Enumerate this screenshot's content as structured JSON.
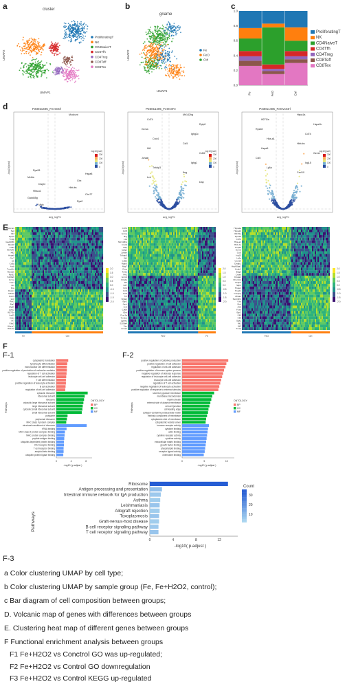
{
  "panels": {
    "a": {
      "label": "a",
      "title": "cluster",
      "xlabel": "UMAP1",
      "ylabel": "UMAP2"
    },
    "b": {
      "label": "b",
      "title": "gname",
      "xlabel": "UMAP1",
      "ylabel": "UMAP2"
    },
    "c": {
      "label": "c"
    },
    "d": {
      "label": "d"
    },
    "e": {
      "label": "E"
    },
    "f": {
      "label": "F",
      "f1": "F-1",
      "f2": "F-2",
      "f3": "F-3"
    }
  },
  "colors": {
    "ProliferatingT": "#1f77b4",
    "NK": "#ff7f0e",
    "CD4NaiveT": "#2ca02c",
    "CD4Tfh": "#d62728",
    "CD4Treg": "#9467bd",
    "CD8Teff": "#8c564b",
    "CD8Tex": "#e377c2",
    "Fe": "#1f77b4",
    "FeO": "#ff7f0e",
    "Ctrl": "#2ca02c",
    "ontBP": "#f8766d",
    "ontCC": "#00ba38",
    "ontMF": "#619cff"
  },
  "legend_a": [
    "ProliferatingT",
    "NK",
    "CD4NaiveT",
    "CD4Tfh",
    "CD4Treg",
    "CD8Teff",
    "CD8Tex"
  ],
  "legend_b": [
    "Fe",
    "FeO",
    "Ctrl"
  ],
  "chart_data": [
    {
      "type": "bar",
      "id": "c",
      "categories": [
        "Fe",
        "FeO",
        "Ctrl"
      ],
      "series": [
        {
          "name": "CD8Tex",
          "values": [
            0.26,
            0.15,
            0.3
          ]
        },
        {
          "name": "CD8Teff",
          "values": [
            0.07,
            0.04,
            0.05
          ]
        },
        {
          "name": "CD4Treg",
          "values": [
            0.06,
            0.03,
            0.04
          ]
        },
        {
          "name": "CD4Tfh",
          "values": [
            0.07,
            0.06,
            0.07
          ]
        },
        {
          "name": "CD4NaiveT",
          "values": [
            0.17,
            0.5,
            0.14
          ]
        },
        {
          "name": "NK",
          "values": [
            0.14,
            0.05,
            0.18
          ]
        },
        {
          "name": "ProliferatingT",
          "values": [
            0.23,
            0.17,
            0.22
          ]
        }
      ],
      "ylim": [
        0,
        1.0
      ],
      "yticks": [
        "0.0",
        "0.2",
        "0.4",
        "0.6",
        "0.8",
        "1.0"
      ],
      "legend": [
        "ProliferatingT",
        "NK",
        "CD4NaiveT",
        "CD4Tfh",
        "CD4Treg",
        "CD8Teff",
        "CD8Tex"
      ]
    },
    {
      "type": "bar",
      "id": "f3",
      "categories": [
        "Ribosome",
        "Antigen processing and presentation",
        "Intestinal immune network for IgA production",
        "Asthma",
        "Leishmaniasis",
        "Allograft rejection",
        "Toxoplasmosis",
        "Graft-versus-host disease",
        "B cell receptor signaling pathway",
        "T cell receptor signaling pathway"
      ],
      "values": [
        13.5,
        2.1,
        1.9,
        1.8,
        1.7,
        1.7,
        1.6,
        1.6,
        1.5,
        1.5
      ],
      "counts": [
        38,
        12,
        9,
        8,
        10,
        8,
        10,
        8,
        9,
        10
      ],
      "xlabel": "-log10( p.adjust )",
      "ylabel": "Pathways",
      "xticks": [
        "0",
        "4",
        "8",
        "12"
      ],
      "colorbar_title": "Count",
      "colorbar_ticks": [
        "30",
        "20",
        "10"
      ]
    },
    {
      "type": "bar",
      "id": "f1",
      "ylabel": "Pathways",
      "xlabel": "-log10 (p.adjust )",
      "legend_title": "ONTOLOGY",
      "legend": [
        "BP",
        "CC",
        "MF"
      ],
      "categories": [
        "cytoplasmic translation",
        "lymphocyte differentiation",
        "mononuclear cell differentiation",
        "positive regulation of production of molecular mediator",
        "regulation of T cell activation",
        "leukocyte cell-cell adhesion",
        "T cell differentiation",
        "positive regulation of leukocyte activation",
        "B cell activation",
        "regulation of cell-cell adhesion",
        "cytosolic ribosome",
        "ribosomal subunit",
        "ribosome",
        "cytosolic large ribosomal subunit",
        "large ribosomal subunit",
        "cytosolic small ribosomal subunit",
        "small ribosomal subunit",
        "polysome",
        "polysomal ribosome",
        "MHC class II protein complex",
        "structural constituent of ribosome",
        "rRNA binding",
        "MHC class II protein complex binding",
        "MHC protein complex binding",
        "peptide antigen binding",
        "ubiquitin-dependent protein binding",
        "CD4 receptor binding",
        "T cell receptor binding",
        "amyloid-beta binding",
        "ubiquitin protein ligase binding"
      ],
      "values": [
        3.6,
        3.3,
        3.2,
        3.2,
        3.1,
        3.0,
        2.9,
        2.9,
        2.8,
        2.7,
        9.5,
        8.6,
        8.4,
        8.2,
        8.0,
        7.9,
        7.7,
        3.4,
        3.2,
        3.0,
        9.2,
        3.1,
        2.6,
        2.5,
        2.4,
        2.3,
        2.3,
        2.2,
        2.2,
        2.1
      ],
      "ontology": [
        "BP",
        "BP",
        "BP",
        "BP",
        "BP",
        "BP",
        "BP",
        "BP",
        "BP",
        "BP",
        "CC",
        "CC",
        "CC",
        "CC",
        "CC",
        "CC",
        "CC",
        "CC",
        "CC",
        "CC",
        "MF",
        "MF",
        "MF",
        "MF",
        "MF",
        "MF",
        "MF",
        "MF",
        "MF",
        "MF"
      ],
      "xticks": [
        "0",
        "4",
        "8"
      ]
    },
    {
      "type": "bar",
      "id": "f2",
      "ylabel": "Pathways",
      "xlabel": "-log10 (p.adjust )",
      "legend_title": "ONTOLOGY",
      "legend": [
        "BP",
        "CC",
        "MF"
      ],
      "categories": [
        "positive regulation of cytokine production",
        "positive regulation of cell adhesion",
        "regulation of cell-cell adhesion",
        "positive regulation of immune system process",
        "negative regulation of defense response",
        "regulation of leukocyte cell-cell adhesion",
        "leukocyte cell-cell adhesion",
        "regulation of T cell activation",
        "negative regulation of leukocyte activation",
        "positive regulation of response to external stimulus",
        "secretory granule membrane",
        "membrane microdomain",
        "myelin sheath",
        "external side of plasma membrane",
        "cell-cell junction",
        "cell leading edge",
        "collagen-containing extracellular matrix",
        "extrinsic component of membrane",
        "cytoplasmic side of membrane",
        "cytoplasmic vesicle lumen",
        "immune receptor activity",
        "cytokine binding",
        "actin binding",
        "cytokine receptor activity",
        "cytokine activity",
        "extracellular matrix binding",
        "growth factor binding",
        "phospholipid binding",
        "receptor ligand activity",
        "chemokine binding"
      ],
      "values": [
        9.8,
        9.4,
        9.2,
        8.9,
        8.7,
        8.5,
        8.3,
        8.1,
        7.9,
        7.7,
        6.8,
        6.4,
        6.2,
        6.0,
        5.8,
        5.6,
        5.5,
        5.3,
        5.1,
        5.0,
        5.7,
        5.5,
        5.4,
        5.3,
        5.2,
        5.1,
        5.0,
        4.9,
        4.8,
        4.6
      ],
      "ontology": [
        "BP",
        "BP",
        "BP",
        "BP",
        "BP",
        "BP",
        "BP",
        "BP",
        "BP",
        "BP",
        "CC",
        "CC",
        "CC",
        "CC",
        "CC",
        "CC",
        "CC",
        "CC",
        "CC",
        "CC",
        "MF",
        "MF",
        "MF",
        "MF",
        "MF",
        "MF",
        "MF",
        "MF",
        "MF",
        "MF"
      ],
      "xticks": [
        "0",
        "5",
        "10"
      ]
    }
  ],
  "volcano": [
    {
      "title": "P23011405_FevsCtrl",
      "xlabel": "avg_logFC",
      "ylabel": "-log10(pval)",
      "colorbar_title": "-log10(pval)",
      "colorbar_ticks": [
        "300",
        "200",
        "100",
        "0"
      ],
      "genes": [
        "Mcdcunt",
        "Rps28",
        "Hspa8",
        "Mcl4a",
        "Cbx",
        "Dwpl4",
        "Hbb-bs",
        "Hba-a1",
        "Cbx77",
        "Gadd45g",
        "Rps2",
        "Mtdc"
      ]
    },
    {
      "title": "P23011405_FeOvsFe",
      "xlabel": "avg_logFC",
      "ylabel": "-log10(pval)",
      "colorbar_title": "-log10(pval)",
      "colorbar_ticks": [
        "300",
        "200",
        "100",
        "0"
      ],
      "genes": [
        "Mir142hg",
        "Cd74",
        "Rplp0",
        "Gzma",
        "Ighg2c",
        "Cxcl4",
        "Ccl5",
        "Ifit1",
        "Cd52",
        "Jchain",
        "Ighg1",
        "Tnfaip3",
        "Ifng",
        "Lck",
        "Dap"
      ]
    },
    {
      "title": "P23011405_FeOvsCtrl",
      "xlabel": "avg_logFC",
      "ylabel": "-log10(pval)",
      "colorbar_title": "-log10(pval)",
      "colorbar_ticks": [
        "300",
        "200",
        "100",
        "0"
      ],
      "genes": [
        "Hspa1a",
        "Ifi27l2a",
        "Hspa1b",
        "Rps28",
        "Cd74",
        "Hba-a1",
        "Hbb-bs",
        "Hspa5",
        "Gzmb",
        "Ccl5",
        "Isg15",
        "Ly6a",
        "Cxcl10"
      ]
    }
  ],
  "heatmaps": [
    {
      "genes": [
        "Mcdcunt",
        "Sell",
        "Ifit3",
        "Rplp0",
        "Txnip",
        "Gadd45b",
        "Rps28",
        "Cd52",
        "Ms4a4b",
        "Klf2",
        "Hspa8",
        "Ccr7",
        "Ltb",
        "Cd3g",
        "Actb",
        "Tmsb4x",
        "Hspa1b",
        "Rpl32",
        "S100a6",
        "Gzma",
        "Crip1",
        "Jun",
        "Fos",
        "Dusp1",
        "Nfkbia",
        "Cxcr4",
        "Ier2",
        "Pim1",
        "Btg2",
        "Zfp36",
        "Ly6c2",
        "Ifi27l2a",
        "Isg15",
        "Stat1",
        "Irf7",
        "Gbp2",
        "Hba-a1",
        "Hbb-bs"
      ],
      "groups": [
        {
          "name": "Fe",
          "frac": 0.19
        },
        {
          "name": "Ctrl",
          "frac": 0.81
        }
      ],
      "colorbar_ticks": [
        "2.0",
        "1.5",
        "1.0",
        "0.5",
        "0.0",
        "-0.5",
        "-1.0",
        "-1.5",
        "-2.0"
      ]
    },
    {
      "genes": [
        "Cd74",
        "Ccl5",
        "Gzma",
        "Ifng",
        "Lck",
        "Mir142hg",
        "Cxcl4",
        "Dap",
        "Ighg1",
        "Jchain",
        "Tnfaip3",
        "Ifit1",
        "Cd52",
        "Rplp0",
        "Nkg7",
        "Ctsw",
        "Klrd1",
        "Prf1",
        "Gzmb",
        "Ctla2a",
        "Id2",
        "Cd7",
        "Xcl1",
        "Ccl4",
        "Ccl3",
        "Tnf",
        "Nr4a1",
        "Egr1",
        "Junb",
        "Ier3",
        "Cd69",
        "Il2rb",
        "Fcer1g",
        "Tyrobp",
        "Lgals1",
        "S100a4",
        "Vim",
        "Anxa1"
      ],
      "groups": [
        {
          "name": "FeO",
          "frac": 0.8
        },
        {
          "name": "Fe",
          "frac": 0.2
        }
      ],
      "colorbar_ticks": [
        "2.0",
        "1.5",
        "1.0",
        "0.5",
        "0.0",
        "-0.5",
        "-1.0",
        "-1.5",
        "-2.0"
      ]
    },
    {
      "genes": [
        "Hspa1a",
        "Hspa1b",
        "Ifi27l2a",
        "Rps28",
        "Cd74",
        "Hba-a1",
        "Hbb-bs",
        "Hspa5",
        "Gzmb",
        "Ccl5",
        "Isg15",
        "Ly6a",
        "Cxcl10",
        "Dnajb1",
        "Hsp90aa1",
        "Hsph1",
        "Bag3",
        "Cryab",
        "Dnaja1",
        "Chordc1",
        "Fkbp4",
        "Stip1",
        "Hspe1",
        "Hspd1",
        "Cacybp",
        "Ahsa1",
        "Serpinh1",
        "Ubc",
        "Ubb",
        "Atf3",
        "Fosb",
        "Egr2",
        "Klf4",
        "Klf6",
        "Sgk1",
        "Mt1",
        "Mt2",
        "Txnip"
      ],
      "groups": [
        {
          "name": "FeO",
          "frac": 0.56
        },
        {
          "name": "Ctrl",
          "frac": 0.44
        }
      ],
      "colorbar_ticks": [
        "2.0",
        "1.5",
        "1.0",
        "0.5",
        "0.0",
        "-0.5",
        "-1.0",
        "-1.5",
        "-2.0"
      ]
    }
  ],
  "captions": [
    {
      "id": "a",
      "text": "a    Color clustering UMAP by cell type;"
    },
    {
      "id": "b",
      "text": "b    Color clustering UMAP by sample group (Fe, Fe+H2O2, control);"
    },
    {
      "id": "c",
      "text": "c    Bar diagram of cell composition between groups;"
    },
    {
      "id": "d",
      "text": "D.  Volcanic map of genes with differences between groups"
    },
    {
      "id": "e",
      "text": "E.  Clustering heat map of different genes between groups"
    },
    {
      "id": "f",
      "text": "F     Functional enrichment analysis between groups"
    },
    {
      "id": "f1",
      "text": "F1 Fe+H2O2 vs Conctrol GO was up-regulated;"
    },
    {
      "id": "f2",
      "text": "F2 Fe+H2O2 vs Control GO downregulation"
    },
    {
      "id": "f3",
      "text": "F3 Fe+H2O2 vs Control KEGG up-regulated"
    }
  ]
}
